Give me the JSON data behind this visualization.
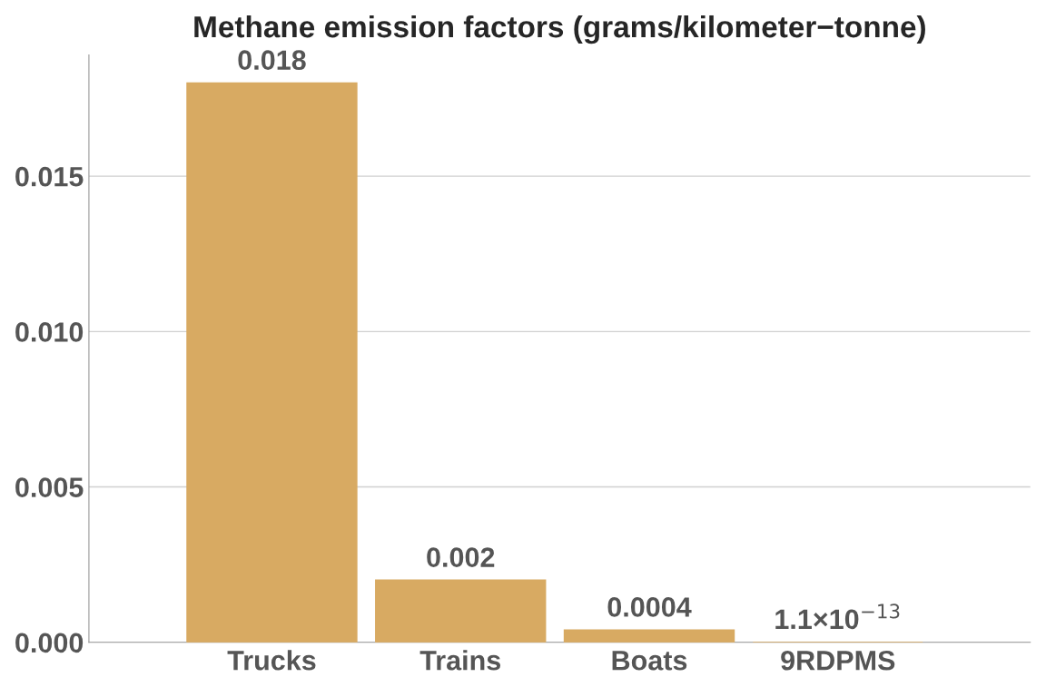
{
  "chart_data": {
    "type": "bar",
    "title": "Methane emission factors (grams/kilometer−tonne)",
    "categories": [
      "Trucks",
      "Trains",
      "Boats",
      "9RDPMS"
    ],
    "values": [
      0.018,
      0.002,
      0.0004,
      1.1e-13
    ],
    "value_labels": [
      "0.018",
      "0.002",
      "0.0004",
      "1.1×10$^{−13}$"
    ],
    "color": "#d8aa62",
    "ylim": [
      0,
      0.0189
    ],
    "yticks": [
      {
        "value": 0,
        "label": "0.000"
      },
      {
        "value": 0.005,
        "label": "0.005"
      },
      {
        "value": 0.01,
        "label": "0.010"
      },
      {
        "value": 0.015,
        "label": "0.015"
      }
    ],
    "grid": "y"
  }
}
